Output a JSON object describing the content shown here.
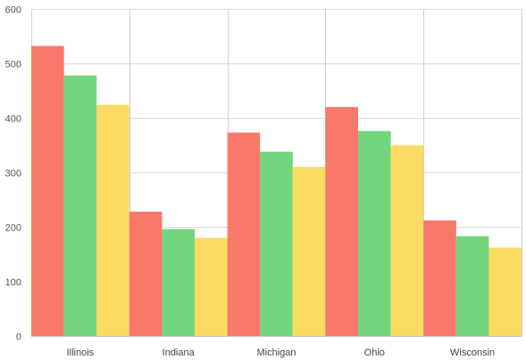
{
  "chart_data": {
    "type": "bar",
    "title": "",
    "xlabel": "",
    "ylabel": "",
    "categories": [
      "Illinois",
      "Indiana",
      "Michigan",
      "Ohio",
      "Wisconsin"
    ],
    "series": [
      {
        "color": "#f8786a",
        "values": [
          532,
          228,
          373,
          420,
          212
        ]
      },
      {
        "color": "#73d67f",
        "values": [
          478,
          196,
          338,
          376,
          183
        ]
      },
      {
        "color": "#fbdb62",
        "values": [
          424,
          180,
          310,
          350,
          162
        ]
      }
    ],
    "ylim": [
      0,
      600
    ],
    "yticks": [
      0,
      100,
      200,
      300,
      400,
      500,
      600
    ],
    "grid": true,
    "legend": "none"
  }
}
